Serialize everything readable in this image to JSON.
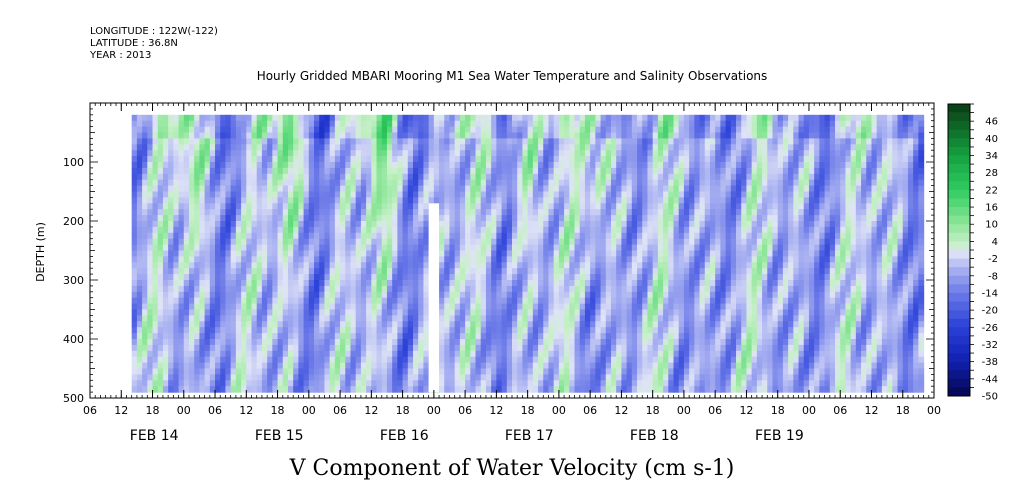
{
  "header": {
    "longitude": "LONGITUDE : 122W(-122)",
    "latitude": "LATITUDE : 36.8N",
    "year": "YEAR : 2013"
  },
  "chart_data": {
    "type": "heatmap",
    "title": "Hourly Gridded MBARI Mooring M1 Sea Water Temperature and Salinity Observations",
    "xlabel": "V Component of Water Velocity (cm s-1)",
    "ylabel": "DEPTH (m)",
    "x_hour_ticks": [
      "06",
      "12",
      "18",
      "00",
      "06",
      "12",
      "18",
      "00",
      "06",
      "12",
      "18",
      "00",
      "06",
      "12",
      "18",
      "00",
      "06",
      "12",
      "18",
      "00",
      "06",
      "12",
      "18",
      "00",
      "06",
      "12",
      "18",
      "00"
    ],
    "x_day_labels": [
      "FEB 14",
      "FEB 15",
      "FEB 16",
      "FEB 17",
      "FEB 18",
      "FEB 19"
    ],
    "x_range_hours_from_feb13_00": [
      6,
      168
    ],
    "data_range_hours_from_feb13_00": [
      14,
      166
    ],
    "y_ticks": [
      100,
      200,
      300,
      400,
      500
    ],
    "ylim": [
      0,
      500
    ],
    "y_inverted": true,
    "data_depth_range_m": [
      20,
      490
    ],
    "missing_segments": [
      {
        "hours": [
          71,
          73
        ],
        "depth_m": [
          170,
          490
        ]
      }
    ],
    "colorbar": {
      "labels": [
        "46",
        "40",
        "34",
        "28",
        "22",
        "16",
        "10",
        "4",
        "-2",
        "-8",
        "-14",
        "-20",
        "-26",
        "-32",
        "-38",
        "-44",
        "-50"
      ],
      "range": [
        -50,
        52
      ],
      "step": 3,
      "colors": {
        "max": "#0a3a14",
        "zero": "#e6f2e6",
        "min": "#06064e",
        "neg_mid": "#2a40d8",
        "pos_mid": "#2ecc60"
      }
    },
    "field_description_values": {
      "surface_positive_bands_hours": [
        26,
        44,
        62,
        90,
        104
      ],
      "dominant_range": [
        -20,
        20
      ]
    }
  }
}
